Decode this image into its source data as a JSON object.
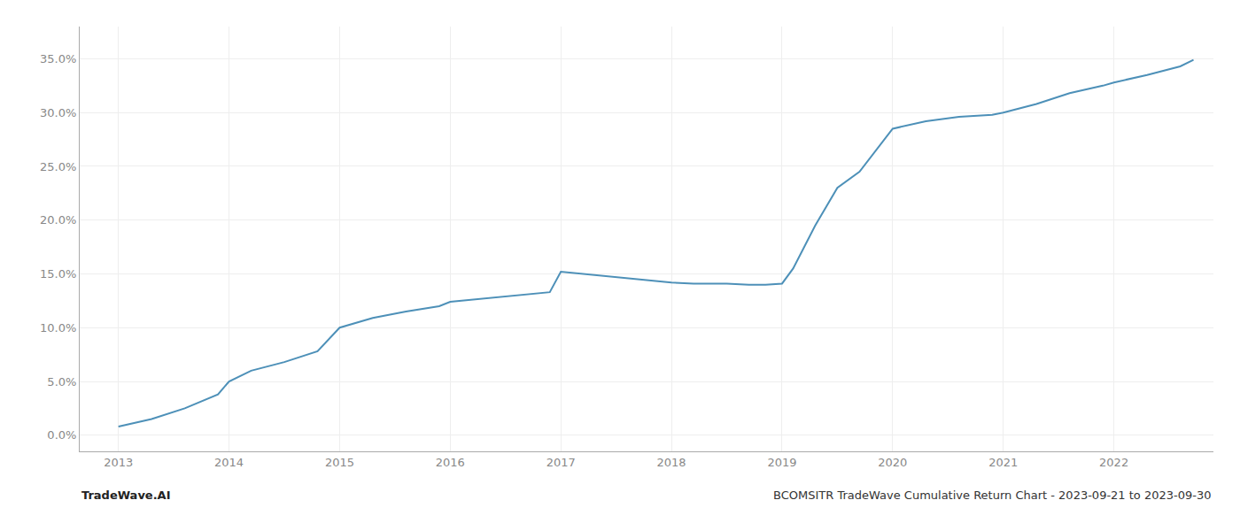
{
  "chart_data": {
    "type": "line",
    "x": [
      2013.0,
      2013.3,
      2013.6,
      2013.9,
      2014.0,
      2014.2,
      2014.5,
      2014.8,
      2015.0,
      2015.3,
      2015.6,
      2015.9,
      2016.0,
      2016.3,
      2016.6,
      2016.9,
      2017.0,
      2017.2,
      2017.5,
      2017.8,
      2018.0,
      2018.2,
      2018.5,
      2018.7,
      2018.85,
      2019.0,
      2019.1,
      2019.3,
      2019.5,
      2019.7,
      2020.0,
      2020.3,
      2020.6,
      2020.9,
      2021.0,
      2021.3,
      2021.6,
      2021.9,
      2022.0,
      2022.3,
      2022.6,
      2022.72
    ],
    "values": [
      0.008,
      0.015,
      0.025,
      0.038,
      0.05,
      0.06,
      0.068,
      0.078,
      0.1,
      0.109,
      0.115,
      0.12,
      0.124,
      0.127,
      0.13,
      0.133,
      0.152,
      0.15,
      0.147,
      0.144,
      0.142,
      0.141,
      0.141,
      0.14,
      0.14,
      0.141,
      0.155,
      0.195,
      0.23,
      0.245,
      0.285,
      0.292,
      0.296,
      0.298,
      0.3,
      0.308,
      0.318,
      0.325,
      0.328,
      0.335,
      0.343,
      0.349
    ],
    "color": "#4d90b8",
    "xlim": [
      2012.65,
      2022.9
    ],
    "ylim": [
      -0.015,
      0.38
    ],
    "xticks": [
      2013,
      2014,
      2015,
      2016,
      2017,
      2018,
      2019,
      2020,
      2021,
      2022
    ],
    "yticks": [
      {
        "value": 0.0,
        "label": "0.0%"
      },
      {
        "value": 0.05,
        "label": "5.0%"
      },
      {
        "value": 0.1,
        "label": "10.0%"
      },
      {
        "value": 0.15,
        "label": "15.0%"
      },
      {
        "value": 0.2,
        "label": "20.0%"
      },
      {
        "value": 0.25,
        "label": "25.0%"
      },
      {
        "value": 0.3,
        "label": "30.0%"
      },
      {
        "value": 0.35,
        "label": "35.0%"
      }
    ],
    "grid": true,
    "annotations": [
      "TradeWave.AI",
      "BCOMSITR TradeWave Cumulative Return Chart - 2023-09-21 to 2023-09-30"
    ]
  }
}
